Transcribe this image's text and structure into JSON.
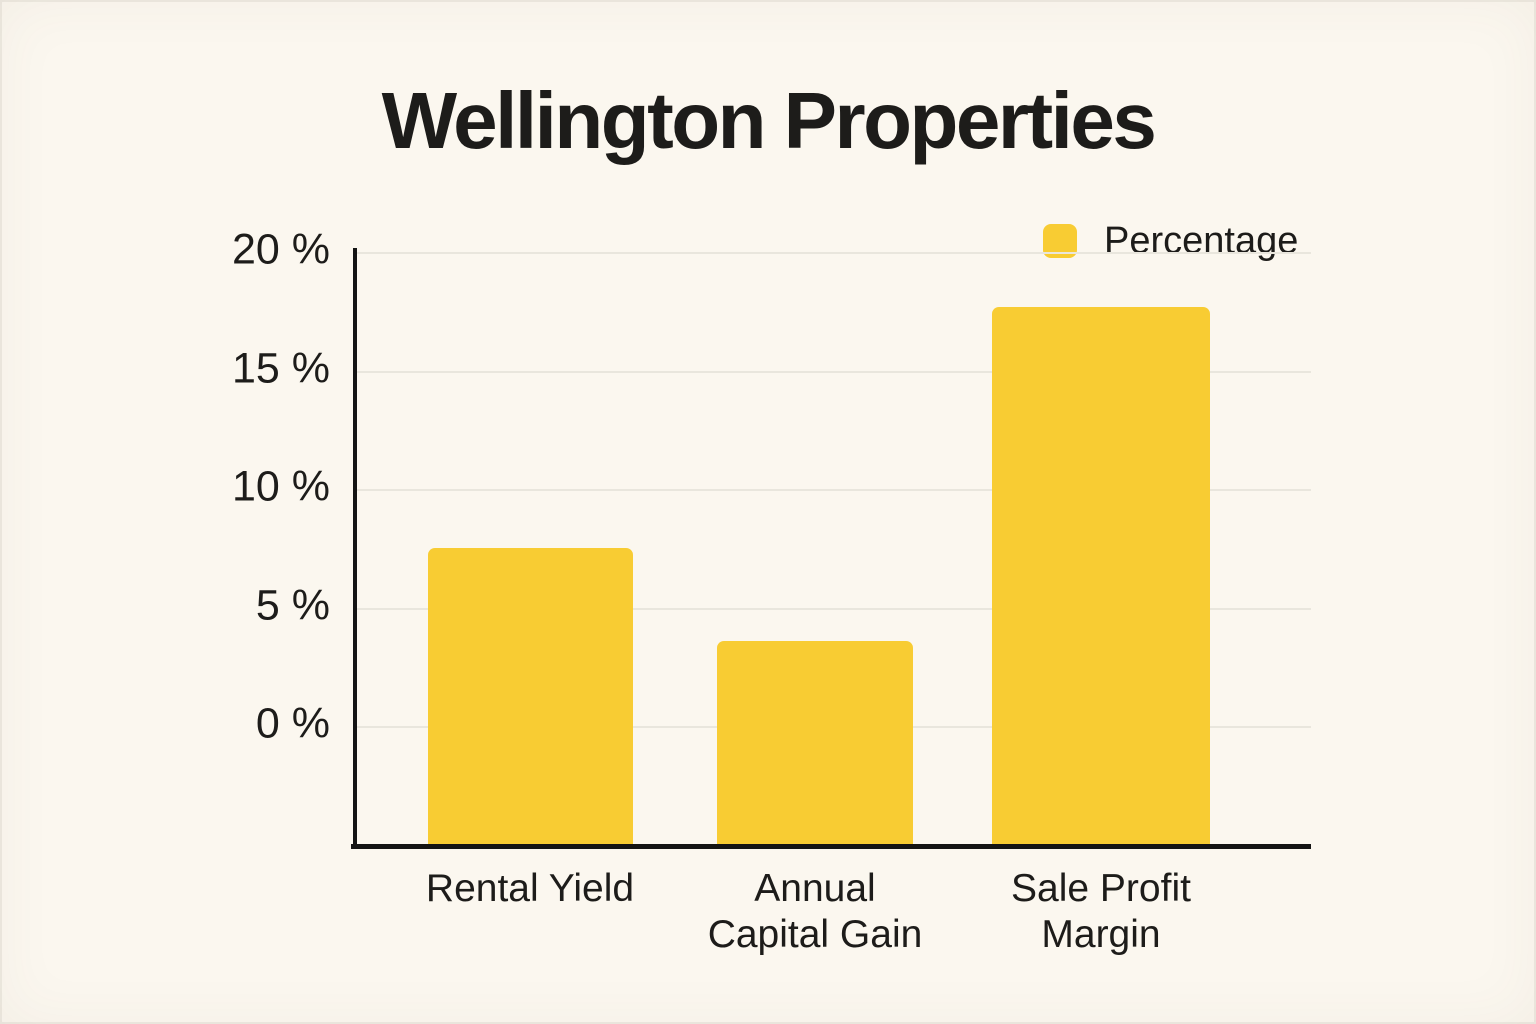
{
  "page": {
    "background_color": "#FBF7EF",
    "text_color": "#1D1C1A",
    "gridline_color": "#E9E6DD",
    "axis_color": "#141414"
  },
  "legend": {
    "label": "Percentage",
    "swatch_color": "#F8CC33"
  },
  "chart_data": {
    "type": "bar",
    "title": "Wellington Properties",
    "categories": [
      "Rental Yield",
      "Annual Capital Gain",
      "Sale Profit Margin"
    ],
    "category_lines": [
      [
        "Rental Yield"
      ],
      [
        "Annual",
        "Capital Gain"
      ],
      [
        "Sale Profit",
        "Margin"
      ]
    ],
    "series": [
      {
        "name": "Percentage",
        "values": [
          7.5,
          3.6,
          17.7
        ]
      }
    ],
    "unit": "%",
    "xlabel": "",
    "ylabel": "",
    "ylim": [
      0,
      20
    ],
    "y_ticks": [
      {
        "value": 20,
        "label": "20 %"
      },
      {
        "value": 15,
        "label": "15 %"
      },
      {
        "value": 10,
        "label": "10 %"
      },
      {
        "value": 5,
        "label": "5 %"
      },
      {
        "value": 0,
        "label": "0 %"
      }
    ],
    "grid": true,
    "legend_position": "top-right",
    "bar_color": "#F8CC33"
  }
}
